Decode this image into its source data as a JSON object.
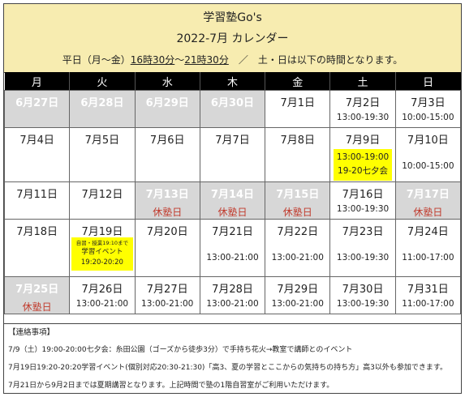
{
  "header": {
    "title": "学習塾Go's",
    "subtitle": "2022-7月 カレンダー",
    "hours_prefix": "平日（月〜金）",
    "hours_start": "16時30分",
    "hours_tilde": "〜",
    "hours_end": "21時30分",
    "hours_suffix": "　／　土・日は以下の時間となります。"
  },
  "weekdays": [
    "月",
    "火",
    "水",
    "木",
    "金",
    "土",
    "日"
  ],
  "weeks": [
    [
      {
        "date": "6月27日",
        "gray": true
      },
      {
        "date": "6月28日",
        "gray": true
      },
      {
        "date": "6月29日",
        "gray": true
      },
      {
        "date": "6月30日",
        "gray": true
      },
      {
        "date": "7月1日"
      },
      {
        "date": "7月2日",
        "time": "13:00-19:30"
      },
      {
        "date": "7月3日",
        "time": "10:00-15:00"
      }
    ],
    [
      {
        "date": "7月4日"
      },
      {
        "date": "7月5日"
      },
      {
        "date": "7月6日"
      },
      {
        "date": "7月7日"
      },
      {
        "date": "7月8日"
      },
      {
        "date": "7月9日",
        "highlight": [
          "13:00-19:00",
          "19-20七夕会"
        ]
      },
      {
        "date": "7月10日",
        "mid_time": "10:00-15:00"
      }
    ],
    [
      {
        "date": "7月11日"
      },
      {
        "date": "7月12日"
      },
      {
        "date": "7月13日",
        "gray": true,
        "red": true,
        "closed": "休塾日"
      },
      {
        "date": "7月14日",
        "gray": true,
        "red": true,
        "closed": "休塾日"
      },
      {
        "date": "7月15日",
        "gray": true,
        "red": true,
        "closed": "休塾日"
      },
      {
        "date": "7月16日",
        "time": "13:00-19:30"
      },
      {
        "date": "7月17日",
        "gray": true,
        "red": true,
        "closed": "休塾日"
      }
    ],
    [
      {
        "date": "7月18日"
      },
      {
        "date": "7月19日",
        "event": {
          "small": "自習・授業19:10まで",
          "lines": [
            "学習イベント",
            "19:20-20:20"
          ]
        }
      },
      {
        "date": "7月20日"
      },
      {
        "date": "7月21日",
        "mid_time": "13:00-21:00"
      },
      {
        "date": "7月22日",
        "mid_time": "13:00-21:00"
      },
      {
        "date": "7月23日",
        "mid_time": "13:00-19:30"
      },
      {
        "date": "7月24日",
        "mid_time": "11:00-17:00"
      }
    ],
    [
      {
        "date": "7月25日",
        "gray": true,
        "red": true,
        "closed": "休塾日"
      },
      {
        "date": "7月26日",
        "time": "13:00-21:00"
      },
      {
        "date": "7月27日",
        "time": "13:00-21:00"
      },
      {
        "date": "7月28日",
        "time": "13:00-21:00"
      },
      {
        "date": "7月29日",
        "time": "13:00-21:00"
      },
      {
        "date": "7月30日",
        "time": "13:00-19:30"
      },
      {
        "date": "7月31日",
        "time": "11:00-17:00"
      }
    ]
  ],
  "notes": {
    "title": "【連絡事項】",
    "items": [
      "7/9（土）19:00-20:00七夕会：糸田公園（ゴーズから徒歩3分）で手持ち花火→教室で講師とのイベント",
      "7月19日19:20-20:20学習イベント(個別対応20:30-21:30)「高3、夏の学習とここからの気持ちの持ち方」高3以外も参加できます。",
      "7月21日から9月2日までは夏期講習となります。上記時間で塾の1階自習室がご利用いただけます。"
    ]
  }
}
